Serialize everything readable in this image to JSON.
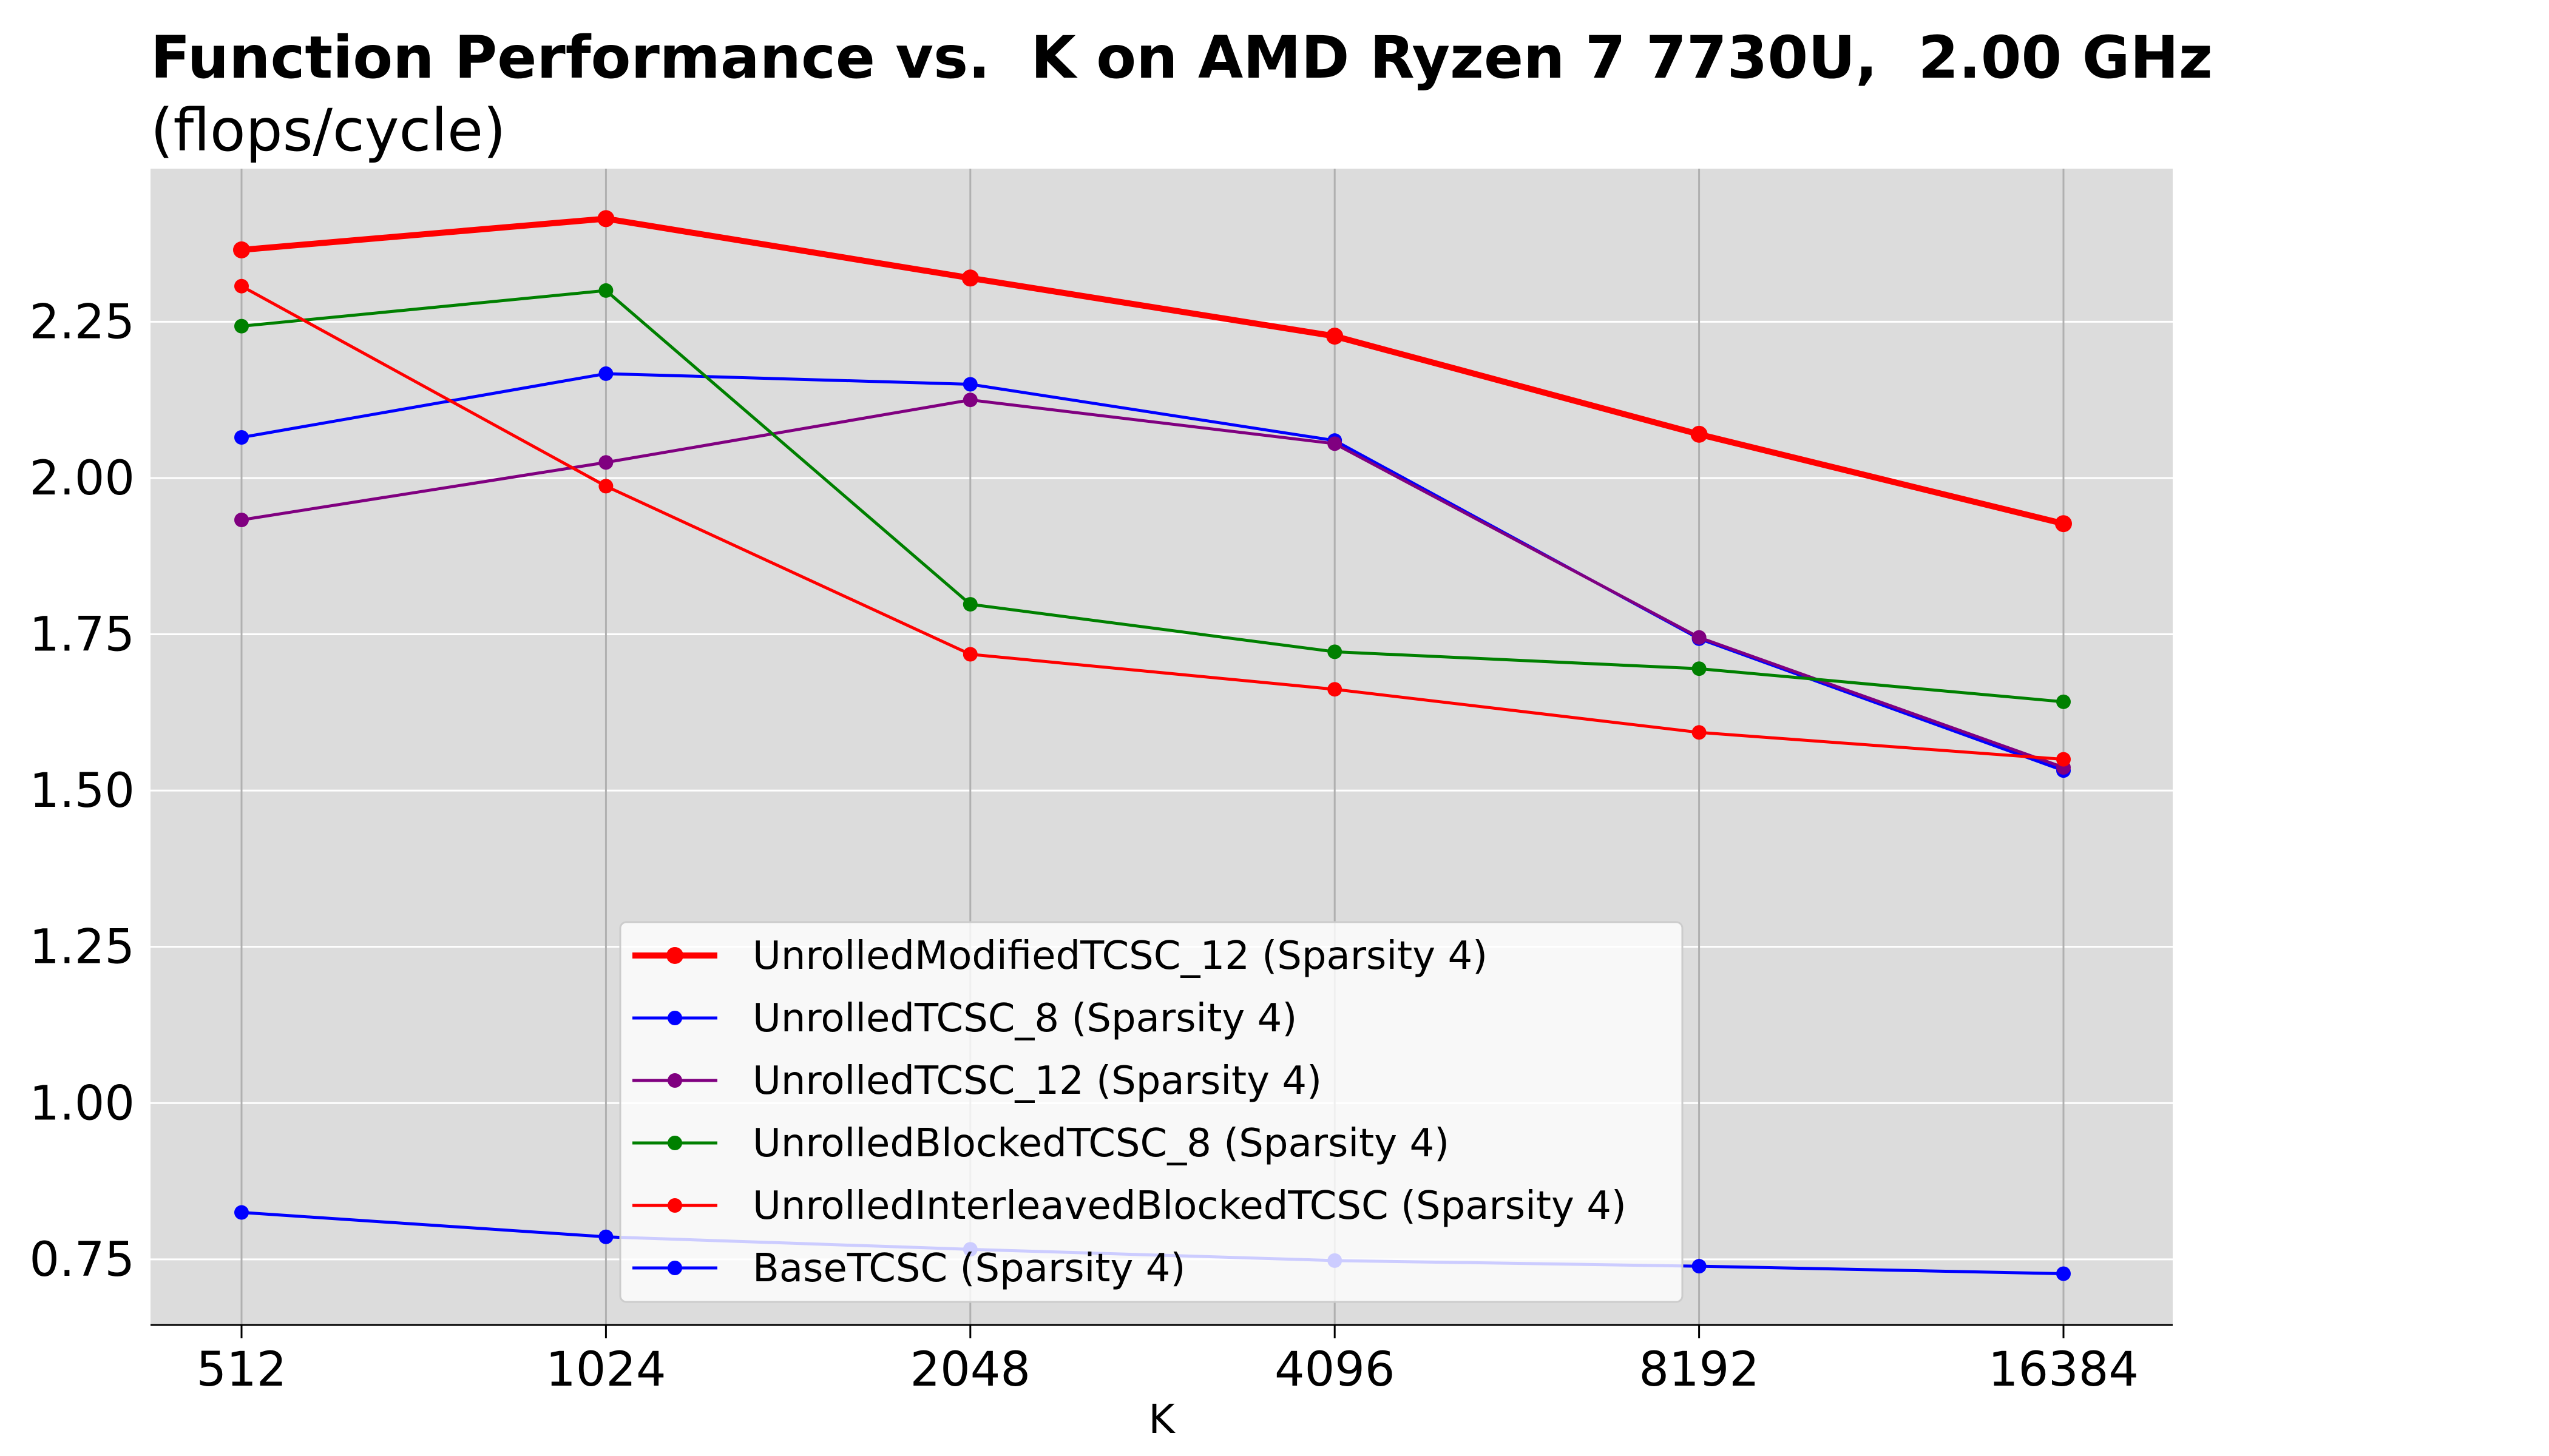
{
  "chart_data": {
    "type": "line",
    "title": "Function Performance vs.  K on AMD Ryzen 7 7730U,  2.00 GHz",
    "subtitle": "(flops/cycle)",
    "xlabel": "K",
    "ylabel": "",
    "x_scale": "log2",
    "x": [
      512,
      1024,
      2048,
      4096,
      8192,
      16384
    ],
    "x_tick_labels": [
      "512",
      "1024",
      "2048",
      "4096",
      "8192",
      "16384"
    ],
    "y_ticks": [
      0.75,
      1.0,
      1.25,
      1.5,
      1.75,
      2.0,
      2.25
    ],
    "y_tick_labels": [
      "0.75",
      "1.00",
      "1.25",
      "1.50",
      "1.75",
      "2.00",
      "2.25"
    ],
    "ylim": [
      0.645,
      2.495
    ],
    "grid": {
      "x": true,
      "y": true
    },
    "background_color": "#dcdcdc",
    "legend_position": "lower center",
    "series": [
      {
        "name": "UnrolledModifiedTCSC_12 (Sparsity 4)",
        "color": "#ff0000",
        "thick": true,
        "values": [
          2.365,
          2.415,
          2.32,
          2.227,
          2.07,
          1.927
        ]
      },
      {
        "name": "UnrolledTCSC_8 (Sparsity 4)",
        "color": "#0000ff",
        "thick": false,
        "values": [
          2.065,
          2.167,
          2.15,
          2.06,
          1.743,
          1.532
        ]
      },
      {
        "name": "UnrolledTCSC_12 (Sparsity 4)",
        "color": "#800080",
        "thick": false,
        "values": [
          1.933,
          2.025,
          2.125,
          2.055,
          1.745,
          1.537
        ]
      },
      {
        "name": "UnrolledBlockedTCSC_8 (Sparsity 4)",
        "color": "#008000",
        "thick": false,
        "values": [
          2.243,
          2.3,
          1.798,
          1.722,
          1.695,
          1.642
        ]
      },
      {
        "name": "UnrolledInterleavedBlockedTCSC (Sparsity 4)",
        "color": "#ff0000",
        "thick": false,
        "values": [
          2.307,
          1.987,
          1.718,
          1.662,
          1.593,
          1.55
        ]
      },
      {
        "name": "BaseTCSC (Sparsity 4)",
        "color": "#0000ff",
        "thick": false,
        "values": [
          0.825,
          0.786,
          0.766,
          0.748,
          0.739,
          0.727
        ]
      }
    ]
  }
}
